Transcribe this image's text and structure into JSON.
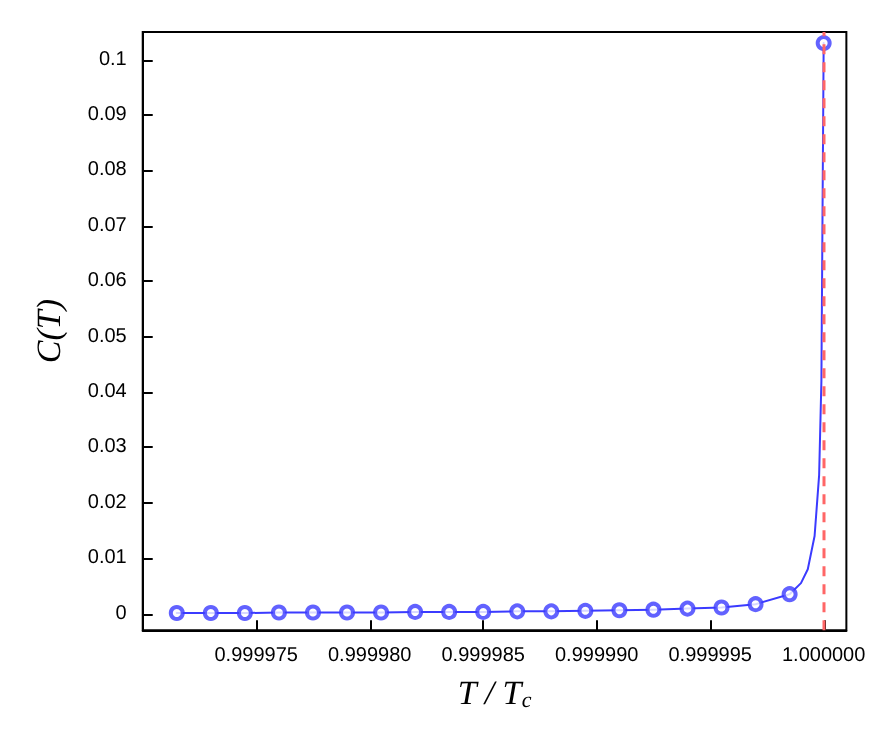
{
  "chart_data": {
    "type": "line",
    "xlabel": "T / T$_{c}$",
    "ylabel": "C(T)",
    "xlim": [
      0.99997,
      1.000001
    ],
    "ylim": [
      -0.003,
      0.105
    ],
    "xticks": [
      0.999975,
      {
        "value": 0.99998,
        "label": "0.999980"
      },
      0.999985,
      {
        "value": 0.99999,
        "label": "0.999990"
      },
      0.999995,
      {
        "value": 1,
        "label": "1.000000"
      }
    ],
    "yticks": [
      0,
      0.01,
      0.02,
      0.03,
      0.04,
      0.05,
      0.06,
      0.07,
      0.08,
      0.09,
      0.1
    ],
    "grid": false,
    "series": [
      {
        "marker": "none",
        "color": "#3b3bff",
        "x": [
          0.9999715,
          0.999973,
          0.9999745,
          0.999976,
          0.9999775,
          0.999979,
          0.9999805,
          0.999982,
          0.9999835,
          0.999985,
          0.9999865,
          0.999988,
          0.9999895,
          0.999991,
          0.9999925,
          0.999994,
          0.9999955,
          0.999997,
          0.9999985,
          0.999999,
          0.9999993,
          0.9999996,
          0.9999998,
          0.9999999,
          1
        ],
        "values": [
          0.0001,
          0.0001,
          0.0001,
          0.0002,
          0.0002,
          0.0002,
          0.0002,
          0.0003,
          0.0003,
          0.0003,
          0.0004,
          0.0004,
          0.0005,
          0.0006,
          0.0007,
          0.0009,
          0.0011,
          0.0017,
          0.0035,
          0.0055,
          0.008,
          0.014,
          0.025,
          0.042,
          0.103
        ]
      },
      {
        "type": "scatter",
        "marker": "circle",
        "color": "#3b3bff",
        "x": [
          0.9999715,
          0.999973,
          0.9999745,
          0.999976,
          0.9999775,
          0.999979,
          0.9999805,
          0.999982,
          0.9999835,
          0.999985,
          0.9999865,
          0.999988,
          0.9999895,
          0.999991,
          0.9999925,
          0.999994,
          0.9999955,
          0.999997,
          0.9999985,
          1
        ],
        "values": [
          0.0001,
          0.0001,
          0.0001,
          0.0002,
          0.0002,
          0.0002,
          0.0002,
          0.0003,
          0.0003,
          0.0003,
          0.0004,
          0.0004,
          0.0005,
          0.0006,
          0.0007,
          0.0009,
          0.0011,
          0.0017,
          0.0035,
          0.103
        ]
      }
    ],
    "ref_lines": [
      {
        "axis": "x",
        "value": 1,
        "color": "#ff6666",
        "line_style": "dashed"
      }
    ]
  }
}
